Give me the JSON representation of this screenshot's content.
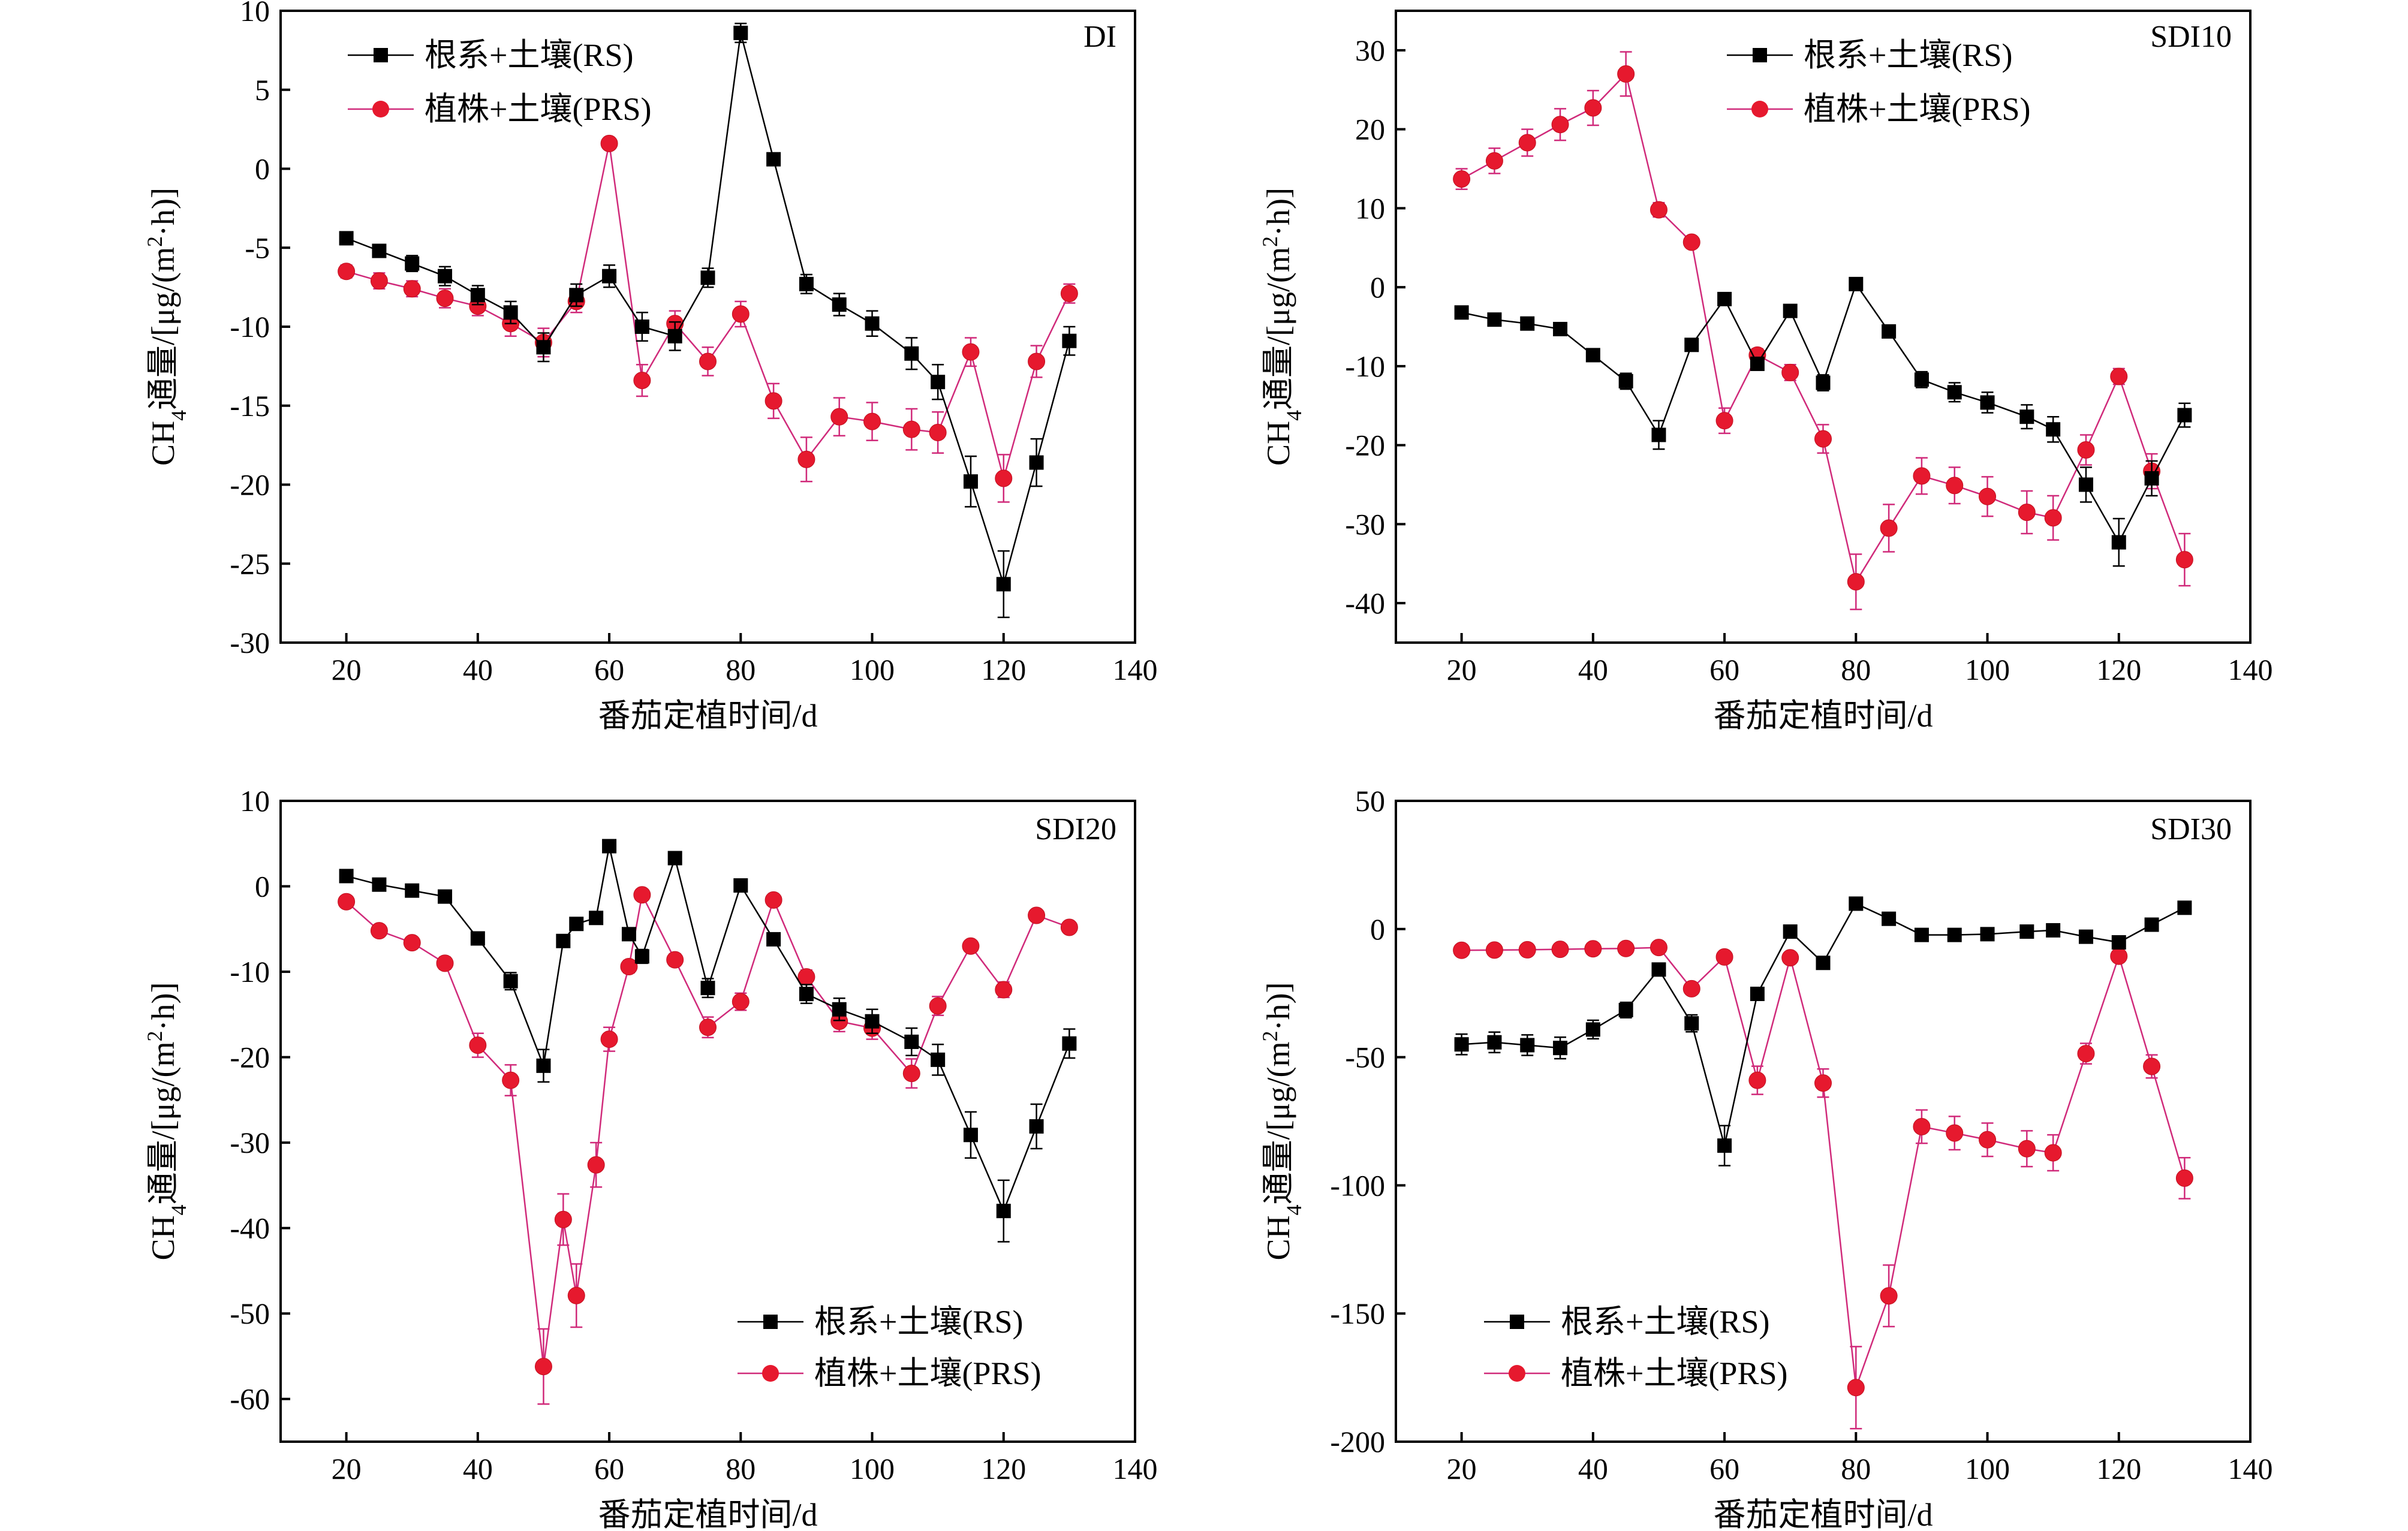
{
  "series_meta": [
    {
      "key": "rs",
      "name": "根系+土壤(RS)",
      "color": "#000000",
      "marker": "square"
    },
    {
      "key": "prs",
      "name": "植株+土壤(PRS)",
      "color": "#e6192e",
      "line_color": "#d02a7a",
      "marker": "circle"
    }
  ],
  "chart_data": [
    {
      "type": "line",
      "label": "DI",
      "xlabel": "番茄定植时间/d",
      "ylabel": "CH4通量/[μg/(m2·h)]",
      "ylabel_parts": {
        "pre": "CH",
        "sub": "4",
        "mid": "通量/[μg/(m",
        "sup": "2",
        "post": "·h)]"
      },
      "xlim": [
        10,
        140
      ],
      "ylim": [
        -30,
        10
      ],
      "xticks": [
        20,
        40,
        60,
        80,
        100,
        120,
        140
      ],
      "yticks": [
        -30,
        -25,
        -20,
        -15,
        -10,
        -5,
        0,
        5,
        10
      ],
      "legend_position": "top-left",
      "series": [
        {
          "name": "根系+土壤(RS)",
          "x": [
            20,
            25,
            30,
            35,
            40,
            45,
            50,
            55,
            60,
            65,
            70,
            75,
            80,
            85,
            90,
            95,
            100,
            106,
            110,
            115,
            120,
            125,
            130
          ],
          "y": [
            -4.4,
            -5.2,
            -6.0,
            -6.8,
            -8.0,
            -9.1,
            -11.3,
            -8.0,
            -6.8,
            -10.0,
            -10.6,
            -6.9,
            8.6,
            0.6,
            -7.3,
            -8.6,
            -9.8,
            -11.7,
            -13.5,
            -19.8,
            -26.3,
            -18.6,
            -10.9
          ],
          "err": [
            0.4,
            0.4,
            0.5,
            0.6,
            0.6,
            0.7,
            0.9,
            0.7,
            0.7,
            0.9,
            0.9,
            0.6,
            0.6,
            0.3,
            0.6,
            0.7,
            0.8,
            1.0,
            1.1,
            1.6,
            2.1,
            1.5,
            0.9
          ]
        },
        {
          "name": "植株+土壤(PRS)",
          "x": [
            20,
            25,
            30,
            35,
            40,
            45,
            50,
            55,
            60,
            65,
            70,
            75,
            80,
            85,
            90,
            95,
            100,
            106,
            110,
            115,
            120,
            125,
            130
          ],
          "y": [
            -6.5,
            -7.1,
            -7.6,
            -8.2,
            -8.7,
            -9.8,
            -11.0,
            -8.4,
            1.6,
            -13.4,
            -9.8,
            -12.2,
            -9.2,
            -14.7,
            -18.4,
            -15.7,
            -16.0,
            -16.5,
            -16.7,
            -11.6,
            -19.6,
            -12.2,
            -7.9
          ],
          "err": [
            0.4,
            0.5,
            0.5,
            0.6,
            0.6,
            0.8,
            0.9,
            0.7,
            0.3,
            1.0,
            0.8,
            0.9,
            0.8,
            1.1,
            1.4,
            1.2,
            1.2,
            1.3,
            1.3,
            0.9,
            1.5,
            1.0,
            0.6
          ]
        }
      ]
    },
    {
      "type": "line",
      "label": "SDI10",
      "xlabel": "番茄定植时间/d",
      "ylabel": "CH4通量/[μg/(m2·h)]",
      "ylabel_parts": {
        "pre": "CH",
        "sub": "4",
        "mid": "通量/[μg/(m",
        "sup": "2",
        "post": "·h)]"
      },
      "xlim": [
        10,
        140
      ],
      "ylim": [
        -45,
        35
      ],
      "xticks": [
        20,
        40,
        60,
        80,
        100,
        120,
        140
      ],
      "yticks": [
        -40,
        -30,
        -20,
        -10,
        0,
        10,
        20,
        30
      ],
      "legend_position": "top-center",
      "series": [
        {
          "name": "根系+土壤(RS)",
          "x": [
            20,
            25,
            30,
            35,
            40,
            45,
            50,
            55,
            60,
            65,
            70,
            75,
            80,
            85,
            90,
            95,
            100,
            106,
            110,
            115,
            120,
            125,
            130
          ],
          "y": [
            -3.2,
            -4.1,
            -4.6,
            -5.3,
            -8.6,
            -11.9,
            -18.7,
            -7.3,
            -1.5,
            -9.7,
            -3.0,
            -12.1,
            0.4,
            -5.6,
            -11.7,
            -13.3,
            -14.6,
            -16.4,
            -18.0,
            -25.0,
            -32.3,
            -24.2,
            -16.2
          ],
          "err": [
            0.4,
            0.4,
            0.4,
            0.5,
            0.7,
            1.0,
            1.8,
            0.6,
            0.3,
            0.8,
            0.3,
            1.0,
            0.3,
            0.5,
            1.0,
            1.2,
            1.3,
            1.5,
            1.6,
            2.2,
            3.0,
            2.2,
            1.5
          ]
        },
        {
          "name": "植株+土壤(PRS)",
          "x": [
            20,
            25,
            30,
            35,
            40,
            45,
            50,
            55,
            60,
            65,
            70,
            75,
            80,
            85,
            90,
            95,
            100,
            106,
            110,
            115,
            120,
            125,
            130
          ],
          "y": [
            13.7,
            16.0,
            18.3,
            20.6,
            22.7,
            27.0,
            9.8,
            5.7,
            -16.9,
            -8.6,
            -10.8,
            -19.2,
            -37.3,
            -30.5,
            -23.9,
            -25.1,
            -26.5,
            -28.5,
            -29.2,
            -20.6,
            -11.3,
            -23.3,
            -34.5
          ],
          "err": [
            1.3,
            1.6,
            1.7,
            2.0,
            2.2,
            2.8,
            0.9,
            0.5,
            1.6,
            0.8,
            1.0,
            1.8,
            3.5,
            3.0,
            2.3,
            2.3,
            2.5,
            2.7,
            2.8,
            1.9,
            1.0,
            2.2,
            3.3
          ]
        }
      ]
    },
    {
      "type": "line",
      "label": "SDI20",
      "xlabel": "番茄定植时间/d",
      "ylabel": "CH4通量/[μg/(m2·h)]",
      "ylabel_parts": {
        "pre": "CH",
        "sub": "4",
        "mid": "通量/[μg/(m",
        "sup": "2",
        "post": "·h)]"
      },
      "xlim": [
        10,
        140
      ],
      "ylim": [
        -65,
        10
      ],
      "xticks": [
        20,
        40,
        60,
        80,
        100,
        120,
        140
      ],
      "yticks": [
        -60,
        -50,
        -40,
        -30,
        -20,
        -10,
        0,
        10
      ],
      "legend_position": "bottom-right",
      "series": [
        {
          "name": "根系+土壤(RS)",
          "x": [
            20,
            25,
            30,
            35,
            40,
            45,
            50,
            53,
            55,
            58,
            60,
            63,
            65,
            70,
            75,
            80,
            85,
            90,
            95,
            100,
            106,
            110,
            115,
            120,
            125,
            130
          ],
          "y": [
            1.2,
            0.2,
            -0.5,
            -1.2,
            -6.1,
            -11.1,
            -21.0,
            -6.4,
            -4.4,
            -3.7,
            4.7,
            -5.6,
            -8.2,
            3.3,
            -11.9,
            0.1,
            -6.2,
            -12.6,
            -14.4,
            -15.8,
            -18.2,
            -20.3,
            -29.1,
            -38.0,
            -28.1,
            -18.4
          ],
          "err": [
            0.3,
            0.2,
            0.2,
            0.3,
            0.6,
            1.0,
            1.9,
            0.6,
            0.4,
            0.4,
            0.4,
            0.5,
            0.8,
            0.3,
            1.1,
            0.2,
            0.6,
            1.1,
            1.3,
            1.4,
            1.6,
            1.8,
            2.7,
            3.6,
            2.6,
            1.7
          ]
        },
        {
          "name": "植株+土壤(PRS)",
          "x": [
            20,
            25,
            30,
            35,
            40,
            45,
            50,
            53,
            55,
            58,
            60,
            63,
            65,
            70,
            75,
            80,
            85,
            90,
            95,
            100,
            106,
            110,
            115,
            120,
            125,
            130
          ],
          "y": [
            -1.8,
            -5.2,
            -6.6,
            -9.0,
            -18.6,
            -22.7,
            -56.2,
            -39.0,
            -47.9,
            -32.6,
            -17.9,
            -9.4,
            -1.0,
            -8.6,
            -16.5,
            -13.5,
            -1.6,
            -10.6,
            -15.8,
            -16.6,
            -21.9,
            -14.0,
            -7.0,
            -12.1,
            -3.4,
            -4.8
          ],
          "err": [
            0.2,
            0.4,
            0.5,
            0.7,
            1.4,
            1.8,
            4.4,
            3.0,
            3.7,
            2.6,
            1.4,
            0.7,
            0.2,
            0.7,
            1.2,
            1.0,
            0.2,
            0.8,
            1.2,
            1.3,
            1.7,
            1.1,
            0.5,
            0.9,
            0.3,
            0.4
          ]
        }
      ]
    },
    {
      "type": "line",
      "label": "SDI30",
      "xlabel": "番茄定植时间/d",
      "ylabel": "CH4通量/[μg/(m2·h)]",
      "ylabel_parts": {
        "pre": "CH",
        "sub": "4",
        "mid": "通量/[μg/(m",
        "sup": "2",
        "post": "·h)]"
      },
      "xlim": [
        10,
        140
      ],
      "ylim": [
        -200,
        50
      ],
      "xticks": [
        20,
        40,
        60,
        80,
        100,
        120,
        140
      ],
      "yticks": [
        -200,
        -150,
        -100,
        -50,
        0,
        50
      ],
      "legend_position": "bottom-center",
      "series": [
        {
          "name": "根系+土壤(RS)",
          "x": [
            20,
            25,
            30,
            35,
            40,
            45,
            50,
            55,
            60,
            65,
            70,
            75,
            80,
            85,
            90,
            95,
            100,
            106,
            110,
            115,
            120,
            125,
            130
          ],
          "y": [
            -45.0,
            -44.2,
            -45.3,
            -46.4,
            -39.2,
            -31.6,
            -15.8,
            -36.8,
            -84.5,
            -25.3,
            -1.0,
            -13.2,
            9.9,
            4.0,
            -2.3,
            -2.3,
            -2.0,
            -1.0,
            -0.5,
            -3.0,
            -5.2,
            1.7,
            8.3
          ],
          "err": [
            4.0,
            4.0,
            4.0,
            4.2,
            3.6,
            3.0,
            1.5,
            3.3,
            7.8,
            2.3,
            0.5,
            1.2,
            1.0,
            0.5,
            0.3,
            0.3,
            0.3,
            0.2,
            0.2,
            0.3,
            0.5,
            0.3,
            1.0
          ]
        },
        {
          "name": "植株+土壤(PRS)",
          "x": [
            20,
            25,
            30,
            35,
            40,
            45,
            50,
            55,
            60,
            65,
            70,
            75,
            80,
            85,
            90,
            95,
            100,
            106,
            110,
            115,
            120,
            125,
            130
          ],
          "y": [
            -8.3,
            -8.2,
            -8.1,
            -7.9,
            -7.7,
            -7.6,
            -7.2,
            -23.3,
            -10.9,
            -59.0,
            -11.2,
            -60.1,
            -178.9,
            -143.1,
            -77.1,
            -79.6,
            -82.2,
            -85.7,
            -87.3,
            -48.6,
            -10.6,
            -53.6,
            -97.2
          ],
          "err": [
            0.8,
            0.8,
            0.8,
            0.7,
            0.7,
            0.7,
            0.7,
            2.2,
            1.0,
            5.5,
            1.0,
            5.5,
            16.0,
            12.0,
            6.5,
            6.5,
            6.5,
            7.0,
            7.0,
            4.0,
            1.0,
            4.5,
            8.0
          ]
        }
      ]
    }
  ]
}
